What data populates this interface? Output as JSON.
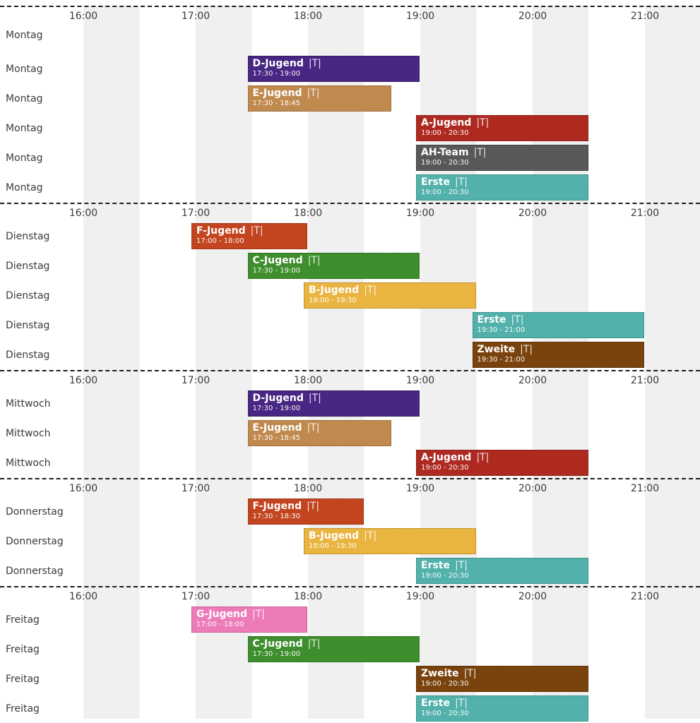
{
  "chart_data": {
    "type": "bar",
    "subtype": "gantt_weekly_training_schedule",
    "time_axis": {
      "tick_labels": [
        "16:00",
        "17:00",
        "18:00",
        "19:00",
        "20:00",
        "21:00"
      ],
      "visible_range": [
        "16:00",
        "21:30"
      ],
      "grid": "alternating half-hour shaded bands, first half of each hour gray"
    },
    "colors": {
      "D-Jugend": {
        "fill": "#482683",
        "border": "#241341"
      },
      "E-Jugend": {
        "fill": "#c08a4f",
        "border": "#7d5526"
      },
      "A-Jugend": {
        "fill": "#ae2a21",
        "border": "#6b1813"
      },
      "AH-Team": {
        "fill": "#58585a",
        "border": "#2c2c2d"
      },
      "Erste": {
        "fill": "#52b1ab",
        "border": "#2d7570"
      },
      "F-Jugend": {
        "fill": "#c2451f",
        "border": "#7a2a12"
      },
      "C-Jugend": {
        "fill": "#3e8e2d",
        "border": "#25591a"
      },
      "B-Jugend": {
        "fill": "#eab440",
        "border": "#9a721f"
      },
      "Zweite": {
        "fill": "#7a430e",
        "border": "#3f2307"
      },
      "G-Jugend": {
        "fill": "#ed7bb8",
        "border": "#a8437a"
      }
    },
    "sections": [
      {
        "day": "Montag",
        "rows": [
          {
            "day_label": "Montag"
          },
          {
            "day_label": "Montag",
            "event": {
              "name": "D-Jugend",
              "tag": "|T|",
              "time": "17:30 - 19:00"
            }
          },
          {
            "day_label": "Montag",
            "event": {
              "name": "E-Jugend",
              "tag": "|T|",
              "time": "17:30 - 18:45"
            }
          },
          {
            "day_label": "Montag",
            "event": {
              "name": "A-Jugend",
              "tag": "|T|",
              "time": "19:00 - 20:30"
            }
          },
          {
            "day_label": "Montag",
            "event": {
              "name": "AH-Team",
              "tag": "|T|",
              "time": "19:00 - 20:30"
            }
          },
          {
            "day_label": "Montag",
            "event": {
              "name": "Erste",
              "tag": "|T|",
              "time": "19:00 - 20:30"
            }
          }
        ]
      },
      {
        "day": "Dienstag",
        "rows": [
          {
            "day_label": "Dienstag",
            "event": {
              "name": "F-Jugend",
              "tag": "|T|",
              "time": "17:00 - 18:00"
            }
          },
          {
            "day_label": "Dienstag",
            "event": {
              "name": "C-Jugend",
              "tag": "|T|",
              "time": "17:30 - 19:00"
            }
          },
          {
            "day_label": "Dienstag",
            "event": {
              "name": "B-Jugend",
              "tag": "|T|",
              "time": "18:00 - 19:30"
            }
          },
          {
            "day_label": "Dienstag",
            "event": {
              "name": "Erste",
              "tag": "|T|",
              "time": "19:30 - 21:00"
            }
          },
          {
            "day_label": "Dienstag",
            "event": {
              "name": "Zweite",
              "tag": "|T|",
              "time": "19:30 - 21:00"
            }
          }
        ]
      },
      {
        "day": "Mittwoch",
        "rows": [
          {
            "day_label": "Mittwoch",
            "event": {
              "name": "D-Jugend",
              "tag": "|T|",
              "time": "17:30 - 19:00"
            }
          },
          {
            "day_label": "Mittwoch",
            "event": {
              "name": "E-Jugend",
              "tag": "|T|",
              "time": "17:30 - 18:45"
            }
          },
          {
            "day_label": "Mittwoch",
            "event": {
              "name": "A-Jugend",
              "tag": "|T|",
              "time": "19:00 - 20:30"
            }
          }
        ]
      },
      {
        "day": "Donnerstag",
        "rows": [
          {
            "day_label": "Donnerstag",
            "event": {
              "name": "F-Jugend",
              "tag": "|T|",
              "time": "17:30 - 18:30"
            }
          },
          {
            "day_label": "Donnerstag",
            "event": {
              "name": "B-Jugend",
              "tag": "|T|",
              "time": "18:00 - 19:30"
            }
          },
          {
            "day_label": "Donnerstag",
            "event": {
              "name": "Erste",
              "tag": "|T|",
              "time": "19:00 - 20:30"
            }
          }
        ]
      },
      {
        "day": "Freitag",
        "rows": [
          {
            "day_label": "Freitag",
            "event": {
              "name": "G-Jugend",
              "tag": "|T|",
              "time": "17:00 - 18:00"
            }
          },
          {
            "day_label": "Freitag",
            "event": {
              "name": "C-Jugend",
              "tag": "|T|",
              "time": "17:30 - 19:00"
            }
          },
          {
            "day_label": "Freitag",
            "event": {
              "name": "Zweite",
              "tag": "|T|",
              "time": "19:00 - 20:30"
            }
          },
          {
            "day_label": "Freitag",
            "event": {
              "name": "Erste",
              "tag": "|T|",
              "time": "19:00 - 20:30"
            }
          }
        ]
      }
    ]
  }
}
